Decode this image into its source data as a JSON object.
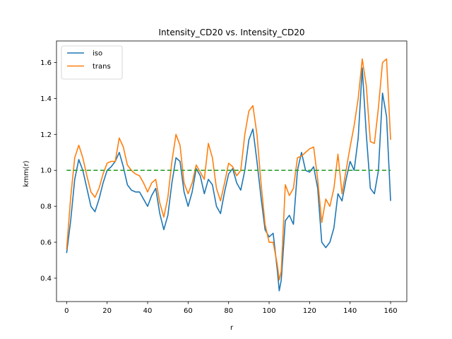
{
  "chart_data": {
    "type": "line",
    "title": "Intensity_CD20 vs. Intensity_CD20",
    "xlabel": "r",
    "ylabel": "kmm(r)",
    "xlim": [
      -5,
      168
    ],
    "ylim": [
      0.27,
      1.72
    ],
    "xticks": [
      0,
      20,
      40,
      60,
      80,
      100,
      120,
      140,
      160
    ],
    "yticks": [
      0.4,
      0.6,
      0.8,
      1.0,
      1.2,
      1.4,
      1.6
    ],
    "ytick_labels": [
      "0.4",
      "0.6",
      "0.8",
      "1.0",
      "1.2",
      "1.4",
      "1.6"
    ],
    "grid": false,
    "legend_position": "upper-left",
    "series": [
      {
        "name": "iso",
        "color": "#1f77b4",
        "x": [
          0,
          2,
          4,
          6,
          8,
          10,
          12,
          14,
          16,
          18,
          20,
          22,
          24,
          26,
          28,
          30,
          32,
          34,
          36,
          38,
          40,
          42,
          44,
          46,
          48,
          50,
          52,
          54,
          56,
          58,
          60,
          62,
          64,
          66,
          68,
          70,
          72,
          74,
          76,
          78,
          80,
          82,
          84,
          86,
          88,
          90,
          92,
          94,
          96,
          98,
          100,
          102,
          104,
          105,
          106,
          108,
          110,
          112,
          114,
          116,
          118,
          120,
          122,
          124,
          126,
          128,
          130,
          132,
          134,
          136,
          138,
          140,
          142,
          144,
          146,
          148,
          150,
          152,
          154,
          156,
          158,
          160
        ],
        "y": [
          0.54,
          0.72,
          0.95,
          1.06,
          1.0,
          0.9,
          0.8,
          0.77,
          0.84,
          0.93,
          1.0,
          1.02,
          1.05,
          1.1,
          1.02,
          0.92,
          0.89,
          0.88,
          0.88,
          0.84,
          0.8,
          0.86,
          0.9,
          0.76,
          0.67,
          0.75,
          0.93,
          1.07,
          1.05,
          0.88,
          0.8,
          0.88,
          1.01,
          0.97,
          0.87,
          0.95,
          0.92,
          0.8,
          0.76,
          0.88,
          0.98,
          1.01,
          0.93,
          0.89,
          1.0,
          1.17,
          1.23,
          1.05,
          0.85,
          0.67,
          0.63,
          0.65,
          0.45,
          0.33,
          0.39,
          0.72,
          0.75,
          0.7,
          1.0,
          1.1,
          1.0,
          0.99,
          1.02,
          0.9,
          0.6,
          0.57,
          0.6,
          0.68,
          0.87,
          0.83,
          0.95,
          1.05,
          1.0,
          1.18,
          1.57,
          1.2,
          0.9,
          0.87,
          1.0,
          1.43,
          1.3,
          0.83
        ]
      },
      {
        "name": "trans",
        "color": "#ff7f0e",
        "x": [
          0,
          2,
          4,
          6,
          8,
          10,
          12,
          14,
          16,
          18,
          20,
          22,
          24,
          26,
          28,
          30,
          32,
          34,
          36,
          38,
          40,
          42,
          44,
          46,
          48,
          50,
          52,
          54,
          56,
          58,
          60,
          62,
          64,
          66,
          68,
          70,
          72,
          74,
          76,
          78,
          80,
          82,
          84,
          86,
          88,
          90,
          92,
          94,
          96,
          98,
          100,
          102,
          104,
          105,
          106,
          108,
          110,
          112,
          114,
          116,
          118,
          120,
          122,
          124,
          126,
          128,
          130,
          132,
          134,
          136,
          138,
          140,
          142,
          144,
          146,
          148,
          150,
          152,
          154,
          156,
          158,
          160
        ],
        "y": [
          0.56,
          0.85,
          1.07,
          1.14,
          1.07,
          0.97,
          0.88,
          0.85,
          0.9,
          0.98,
          1.04,
          1.05,
          1.05,
          1.18,
          1.13,
          1.03,
          1.0,
          0.98,
          0.97,
          0.93,
          0.88,
          0.93,
          0.95,
          0.82,
          0.74,
          0.85,
          1.05,
          1.2,
          1.14,
          0.93,
          0.87,
          0.93,
          1.03,
          0.99,
          0.95,
          1.15,
          1.07,
          0.9,
          0.83,
          0.93,
          1.04,
          1.02,
          0.97,
          1.0,
          1.2,
          1.33,
          1.36,
          1.2,
          0.93,
          0.7,
          0.6,
          0.6,
          0.48,
          0.39,
          0.44,
          0.92,
          0.86,
          0.9,
          1.07,
          1.08,
          1.1,
          1.12,
          1.13,
          0.95,
          0.71,
          0.84,
          0.8,
          0.9,
          1.09,
          0.87,
          1.0,
          1.13,
          1.25,
          1.4,
          1.62,
          1.47,
          1.16,
          1.15,
          1.35,
          1.6,
          1.62,
          1.17
        ]
      },
      {
        "name": "",
        "color": "#2ca02c",
        "dashed": true,
        "x": [
          0,
          160
        ],
        "y": [
          1.0,
          1.0
        ]
      }
    ]
  }
}
